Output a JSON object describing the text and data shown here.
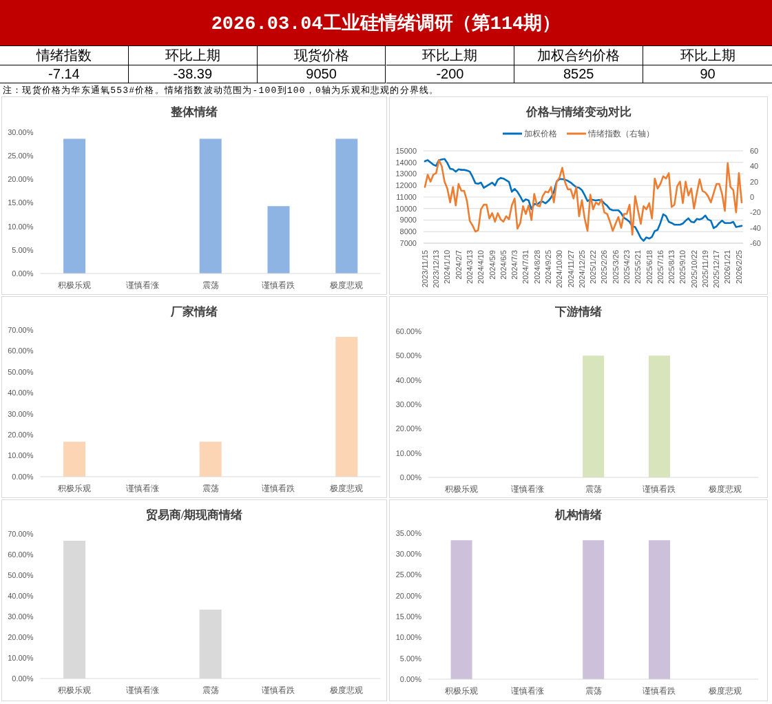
{
  "chart_data": [
    {
      "type": "other",
      "title": "2026.03.04工业硅情绪调研（第114期）",
      "categories": [
        "情绪指数",
        "环比上期",
        "现货价格",
        "环比上期",
        "加权合约价格",
        "环比上期"
      ],
      "values": [
        -7.14,
        -38.39,
        9050,
        -200,
        8525,
        90
      ],
      "data_labels": true,
      "annotations": [
        "注：现货价格为华东通氧553#价格。情绪指数波动范围为-100到100，0轴为乐观和悲观的分界线。"
      ]
    },
    {
      "type": "bar",
      "title": "整体情绪",
      "categories": [
        "积极乐观",
        "谨慎看涨",
        "震荡",
        "谨慎看跌",
        "极度悲观"
      ],
      "values": [
        28.6,
        0,
        28.6,
        14.3,
        28.6
      ],
      "color": "#8db4e2",
      "ylim": [
        0,
        30
      ],
      "yticks": [
        {
          "value": 0,
          "label": "0.00%"
        },
        {
          "value": 5,
          "label": "5.00%"
        },
        {
          "value": 10,
          "label": "10.00%"
        },
        {
          "value": 15,
          "label": "15.00%"
        },
        {
          "value": 20,
          "label": "20.00%"
        },
        {
          "value": 25,
          "label": "25.00%"
        },
        {
          "value": 30,
          "label": "30.00%"
        }
      ]
    },
    {
      "type": "line",
      "title": "价格与情绪变动对比",
      "categories": [
        "2023/11/15",
        null,
        null,
        null,
        "2023/12/13",
        null,
        null,
        null,
        "2024/1/10",
        null,
        null,
        null,
        "2024/2/7",
        null,
        null,
        null,
        "2024/3/13",
        null,
        null,
        null,
        "2024/4/10",
        null,
        null,
        null,
        "2024/5/9",
        null,
        null,
        null,
        "2024/6/5",
        null,
        null,
        null,
        "2024/7/3",
        null,
        null,
        null,
        "2024/7/31",
        null,
        null,
        null,
        "2024/8/28",
        null,
        null,
        null,
        "2024/9/25",
        null,
        null,
        null,
        "2024/10/30",
        null,
        null,
        null,
        "2024/11/27",
        null,
        null,
        null,
        "2024/12/25",
        null,
        null,
        null,
        "2025/1/22",
        null,
        null,
        null,
        "2025/2/26",
        null,
        null,
        null,
        "2025/3/26",
        null,
        null,
        null,
        "2025/4/23",
        null,
        null,
        null,
        "2025/5/21",
        null,
        null,
        null,
        "2025/6/18",
        null,
        null,
        null,
        "2025/7/16",
        null,
        null,
        null,
        "2025/8/13",
        null,
        null,
        null,
        "2025/9/10",
        null,
        null,
        null,
        "2025/10/22",
        null,
        null,
        null,
        "2025/11/19",
        null,
        null,
        null,
        "2025/12/17",
        null,
        null,
        null,
        "2026/1/21",
        null,
        null,
        null,
        "2026/2/25",
        null
      ],
      "series": [
        {
          "name": "加权价格",
          "color": "#0070c0",
          "values": [
            14100,
            14200,
            14000,
            13800,
            13700,
            14200,
            14250,
            14300,
            13950,
            13450,
            13400,
            13200,
            13400,
            13350,
            13350,
            13300,
            13200,
            12750,
            12200,
            12150,
            12250,
            11800,
            11950,
            12100,
            12250,
            12000,
            12500,
            12650,
            12600,
            12450,
            12300,
            11450,
            11700,
            11450,
            11050,
            10600,
            10800,
            10700,
            9950,
            10400,
            10350,
            10550,
            10600,
            10450,
            10650,
            10950,
            11450,
            12350,
            12550,
            12550,
            12500,
            12400,
            12250,
            12050,
            11850,
            11800,
            11600,
            11150,
            10650,
            10800,
            10750,
            10700,
            10750,
            10700,
            10450,
            10250,
            9950,
            9850,
            9850,
            9850,
            9600,
            9200,
            9050,
            8850,
            8450,
            8400,
            7950,
            7450,
            7200,
            7500,
            7400,
            7550,
            8050,
            8150,
            8750,
            9500,
            9350,
            8850,
            8750,
            8600,
            8600,
            8600,
            8700,
            8950,
            9150,
            8850,
            8800,
            9100,
            9050,
            9150,
            9400,
            9050,
            8950,
            8300,
            8450,
            8750,
            8950,
            8750,
            8750,
            8750,
            8850,
            8400,
            8450,
            8500
          ]
        },
        {
          "name": "情绪指数（右轴）",
          "color": "#ed7d31",
          "axis": "y2",
          "values": [
            13,
            29,
            20,
            29,
            31,
            48,
            40,
            20,
            11,
            -7,
            13,
            -11,
            17,
            8,
            8,
            -5,
            -31,
            -37,
            -45,
            -43,
            -16,
            -10,
            -10,
            -28,
            -21,
            -32,
            -21,
            -29,
            -32,
            -25,
            -29,
            -11,
            -2,
            -41,
            -34,
            -12,
            -22,
            -11,
            -30,
            4,
            -11,
            -12,
            1,
            7,
            6,
            13,
            -7,
            20,
            25,
            38,
            19,
            10,
            10,
            -2,
            13,
            -25,
            -4,
            -28,
            -44,
            3,
            -16,
            -7,
            -10,
            -3,
            -20,
            -22,
            -32,
            -44,
            -35,
            -26,
            -40,
            -22,
            -22,
            -10,
            -49,
            1,
            -17,
            -35,
            -12,
            -16,
            -8,
            -28,
            24,
            11,
            17,
            27,
            24,
            31,
            -13,
            -10,
            14,
            20,
            -8,
            20,
            2,
            11,
            -15,
            5,
            23,
            8,
            6,
            1,
            -7,
            5,
            17,
            17,
            4,
            -18,
            44,
            13,
            9,
            -20,
            31,
            -7
          ]
        }
      ],
      "ylim": [
        7000,
        15000
      ],
      "yticks": [
        7000,
        8000,
        9000,
        10000,
        11000,
        12000,
        13000,
        14000,
        15000
      ],
      "y2lim": [
        -60,
        60
      ],
      "y2ticks": [
        -60,
        -40,
        -20,
        0,
        20,
        40,
        60
      ],
      "grid": "y",
      "legend": "top"
    },
    {
      "type": "bar",
      "title": "厂家情绪",
      "categories": [
        "积极乐观",
        "谨慎看涨",
        "震荡",
        "谨慎看跌",
        "极度悲观"
      ],
      "values": [
        16.7,
        0,
        16.7,
        0,
        66.7
      ],
      "color": "#fcd5b4",
      "ylim": [
        0,
        70
      ],
      "yticks": [
        {
          "value": 0,
          "label": "0.00%"
        },
        {
          "value": 10,
          "label": "10.00%"
        },
        {
          "value": 20,
          "label": "20.00%"
        },
        {
          "value": 30,
          "label": "30.00%"
        },
        {
          "value": 40,
          "label": "40.00%"
        },
        {
          "value": 50,
          "label": "50.00%"
        },
        {
          "value": 60,
          "label": "60.00%"
        },
        {
          "value": 70,
          "label": "70.00%"
        }
      ]
    },
    {
      "type": "bar",
      "title": "下游情绪",
      "categories": [
        "积极乐观",
        "谨慎看涨",
        "震荡",
        "谨慎看跌",
        "极度悲观"
      ],
      "values": [
        0,
        0,
        50,
        50,
        0
      ],
      "color": "#d8e4bc",
      "ylim": [
        0,
        60
      ],
      "yticks": [
        {
          "value": 0,
          "label": "0.00%"
        },
        {
          "value": 10,
          "label": "10.00%"
        },
        {
          "value": 20,
          "label": "20.00%"
        },
        {
          "value": 30,
          "label": "30.00%"
        },
        {
          "value": 40,
          "label": "40.00%"
        },
        {
          "value": 50,
          "label": "50.00%"
        },
        {
          "value": 60,
          "label": "60.00%"
        }
      ]
    },
    {
      "type": "bar",
      "title": "贸易商/期现商情绪",
      "categories": [
        "积极乐观",
        "谨慎看涨",
        "震荡",
        "谨慎看跌",
        "极度悲观"
      ],
      "values": [
        66.7,
        0,
        33.3,
        0,
        0
      ],
      "color": "#d9d9d9",
      "ylim": [
        0,
        70
      ],
      "yticks": [
        {
          "value": 0,
          "label": "0.00%"
        },
        {
          "value": 10,
          "label": "10.00%"
        },
        {
          "value": 20,
          "label": "20.00%"
        },
        {
          "value": 30,
          "label": "30.00%"
        },
        {
          "value": 40,
          "label": "40.00%"
        },
        {
          "value": 50,
          "label": "50.00%"
        },
        {
          "value": 60,
          "label": "60.00%"
        },
        {
          "value": 70,
          "label": "70.00%"
        }
      ]
    },
    {
      "type": "bar",
      "title": "机构情绪",
      "categories": [
        "积极乐观",
        "谨慎看涨",
        "震荡",
        "谨慎看跌",
        "极度悲观"
      ],
      "values": [
        33.3,
        0,
        33.3,
        33.3,
        0
      ],
      "color": "#ccc0da",
      "ylim": [
        0,
        35
      ],
      "yticks": [
        {
          "value": 0,
          "label": "0.00%"
        },
        {
          "value": 5,
          "label": "5.00%"
        },
        {
          "value": 10,
          "label": "10.00%"
        },
        {
          "value": 15,
          "label": "15.00%"
        },
        {
          "value": 20,
          "label": "20.00%"
        },
        {
          "value": 25,
          "label": "25.00%"
        },
        {
          "value": 30,
          "label": "30.00%"
        },
        {
          "value": 35,
          "label": "35.00%"
        }
      ]
    }
  ]
}
